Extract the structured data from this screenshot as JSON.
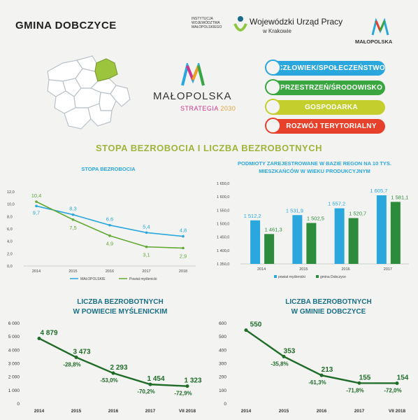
{
  "header": {
    "title": "GMINA DOBCZYCE",
    "wup_small": "INSTYTUCJA WOJEWÓDZTWA MAŁOPOLSKIEGO",
    "wup_name": "Wojewódzki Urząd Pracy",
    "wup_city": "w Krakowie",
    "malopolska_logo_text": "MAŁOPOLSKA"
  },
  "strategy": {
    "name": "MAŁOPOLSKA",
    "strategia": "STRATEGIA",
    "year": "2030"
  },
  "pillars": [
    {
      "label": "CZŁOWIEK/SPOŁECZEŃSTWO",
      "color": "#2aa7dd"
    },
    {
      "label": "PRZESTRZEŃ/ŚRODOWISKO",
      "color": "#3aa63f"
    },
    {
      "label": "GOSPODARKA",
      "color": "#c4cf2e"
    },
    {
      "label": "ROZWÓJ TERYTORIALNY",
      "color": "#e8412b"
    }
  ],
  "section_title": "STOPA BEZROBOCIA I LICZBA BEZROBOTNYCH",
  "chart_data": [
    {
      "type": "line",
      "title": "STOPA BEZROBOCIA",
      "categories": [
        "2014",
        "2015",
        "2016",
        "2017",
        "2018"
      ],
      "ylim": [
        0,
        12
      ],
      "yticks": [
        "0,0",
        "2,0",
        "4,0",
        "6,0",
        "8,0",
        "10,0",
        "12,0"
      ],
      "legend_position": "bottom",
      "series": [
        {
          "name": "MAŁOPOLSKIE",
          "color": "#2aa7dd",
          "values": [
            9.7,
            8.3,
            6.6,
            5.4,
            4.8
          ],
          "labels": [
            "9,7",
            "8,3",
            "6,6",
            "5,4",
            "4,8"
          ]
        },
        {
          "name": "Powiat myślenicki",
          "color": "#5fa832",
          "values": [
            10.4,
            7.5,
            4.9,
            3.1,
            2.9
          ],
          "labels": [
            "10,4",
            "7,5",
            "4,9",
            "3,1",
            "2,9"
          ]
        }
      ]
    },
    {
      "type": "bar",
      "title": "PODMIOTY ZAREJESTROWANE W BAZIE REGON NA 10 TYS. MIESZKAŃCÓW W WIEKU PRODUKCYJNYM",
      "title_lines": [
        "PODMIOTY ZAREJESTROWANE W BAZIE REGON NA 10 TYS.",
        "MIESZKAŃCÓW W WIEKU PRODUKCYJNYM"
      ],
      "categories": [
        "2014",
        "2015",
        "2016",
        "2017"
      ],
      "ylim": [
        1350,
        1650
      ],
      "yticks": [
        "1 350,0",
        "1 400,0",
        "1 450,0",
        "1 500,0",
        "1 550,0",
        "1 600,0",
        "1 650,0"
      ],
      "legend_position": "bottom",
      "series": [
        {
          "name": "powiat myślenicki",
          "color": "#2aa7dd",
          "values": [
            1512.2,
            1531.9,
            1557.2,
            1605.7
          ],
          "labels": [
            "1 512,2",
            "1 531,9",
            "1 557,2",
            "1 605,7"
          ]
        },
        {
          "name": "gmina Dobczyce",
          "color": "#2d8c3c",
          "values": [
            1461.3,
            1502.5,
            1520.7,
            1581.1
          ],
          "labels": [
            "1 461,3",
            "1 502,5",
            "1 520,7",
            "1 581,1"
          ]
        }
      ]
    },
    {
      "type": "line",
      "title_lines": [
        "LICZBA BEZROBOTNYCH",
        "W POWIECIE MYŚLENICKIM"
      ],
      "categories": [
        "2014",
        "2015",
        "2016",
        "2017",
        "VII 2018"
      ],
      "ylim": [
        0,
        6000
      ],
      "yticks": [
        "0",
        "1 000",
        "2 000",
        "3 000",
        "4 000",
        "5 000",
        "6 000"
      ],
      "series": [
        {
          "color": "#1f6b28",
          "values": [
            4879,
            3473,
            2293,
            1454,
            1323
          ],
          "labels": [
            "4 879",
            "3 473",
            "2 293",
            "1 454",
            "1 323"
          ]
        }
      ],
      "annotations": [
        "",
        "-28,8%",
        "-53,0%",
        "-70,2%",
        "-72,9%"
      ]
    },
    {
      "type": "line",
      "title_lines": [
        "LICZBA BEZROBOTNYCH",
        "W GMINIE DOBCZYCE"
      ],
      "categories": [
        "2014",
        "2015",
        "2016",
        "2017",
        "VII 2018"
      ],
      "ylim": [
        0,
        600
      ],
      "yticks": [
        "0",
        "100",
        "200",
        "300",
        "400",
        "500",
        "600"
      ],
      "series": [
        {
          "color": "#1f6b28",
          "values": [
            550,
            353,
            213,
            155,
            154
          ],
          "labels": [
            "550",
            "353",
            "213",
            "155",
            "154"
          ]
        }
      ],
      "annotations": [
        "",
        "-35,8%",
        "-61,3%",
        "-71,8%",
        "-72,0%"
      ]
    }
  ]
}
